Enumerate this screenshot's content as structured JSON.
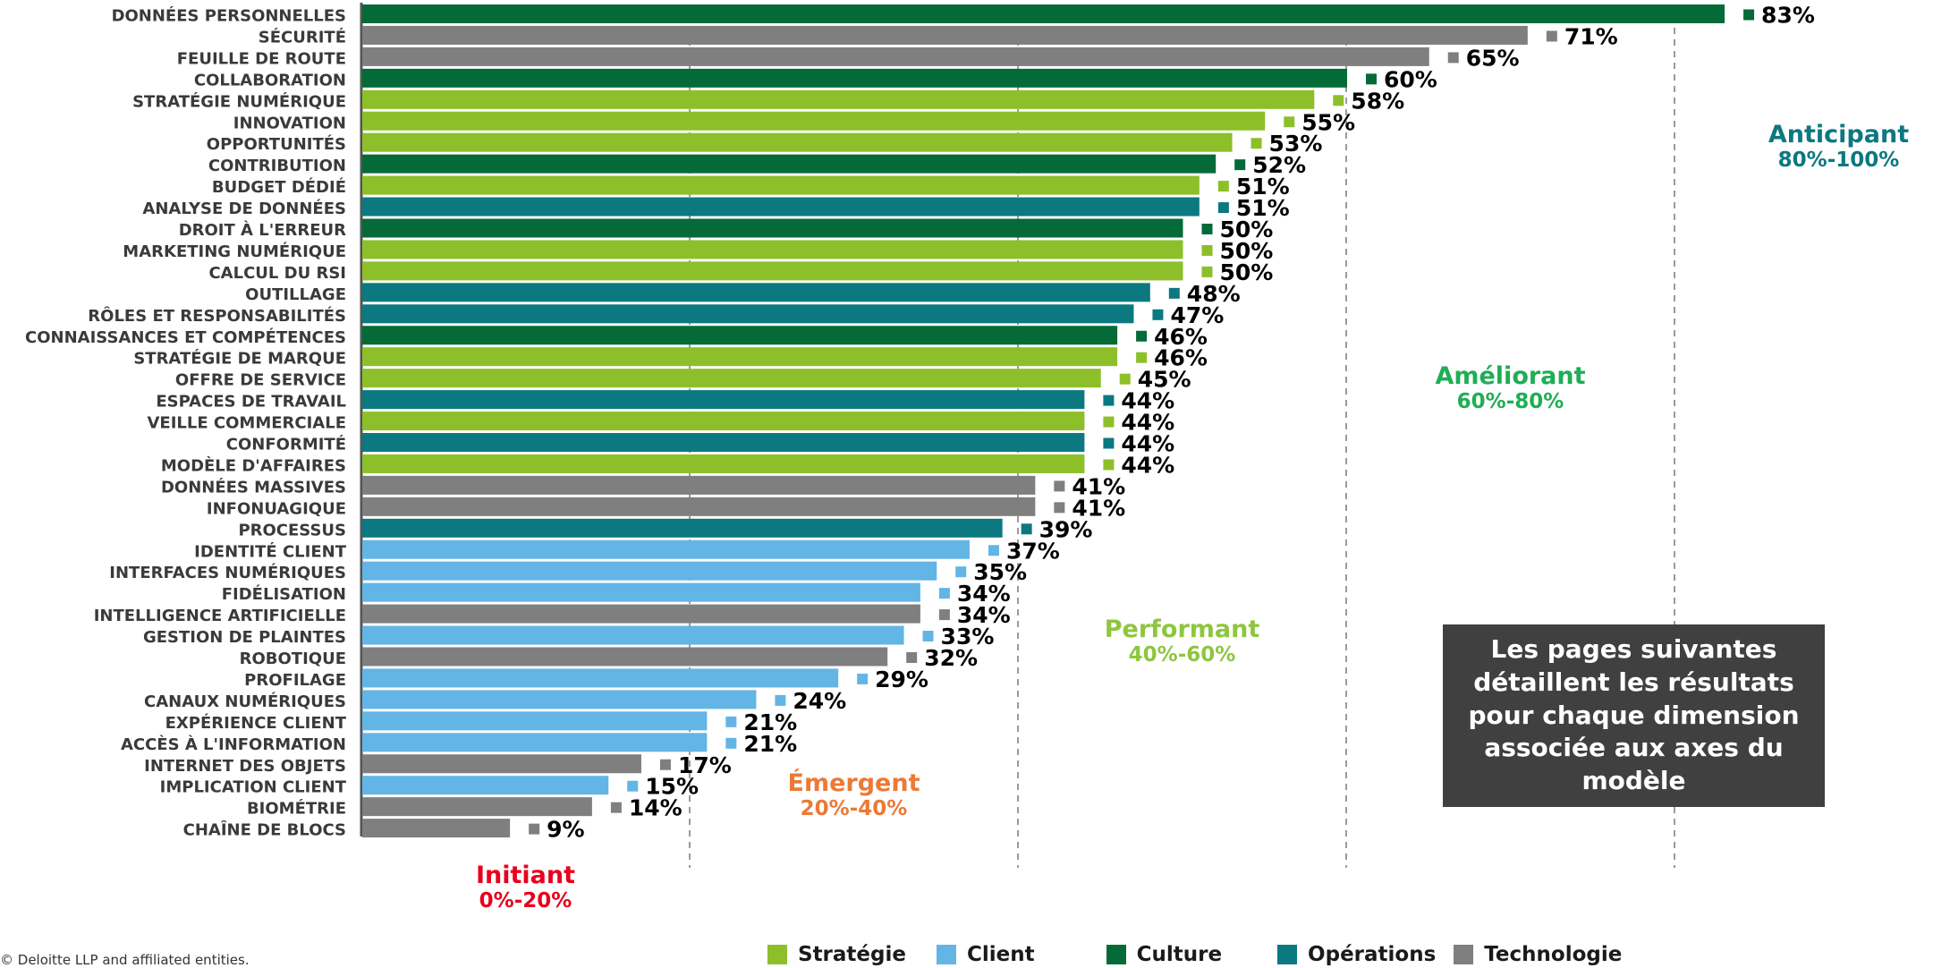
{
  "chart_data": {
    "type": "bar",
    "orientation": "horizontal",
    "xlim": [
      0,
      100
    ],
    "grid": false,
    "categories": [
      "DONNÉES PERSONNELLES",
      "SÉCURITÉ",
      "FEUILLE DE ROUTE",
      "COLLABORATION",
      "STRATÉGIE NUMÉRIQUE",
      "INNOVATION",
      "OPPORTUNITÉS",
      "CONTRIBUTION",
      "BUDGET DÉDIÉ",
      "ANALYSE DE DONNÉES",
      "DROIT À L'ERREUR",
      "MARKETING NUMÉRIQUE",
      "CALCUL DU RSI",
      "OUTILLAGE",
      "RÔLES ET RESPONSABILITÉS",
      "CONNAISSANCES ET COMPÉTENCES",
      "STRATÉGIE DE MARQUE",
      "OFFRE DE SERVICE",
      "ESPACES DE TRAVAIL",
      "VEILLE COMMERCIALE",
      "CONFORMITÉ",
      "MODÈLE D'AFFAIRES",
      "DONNÉES MASSIVES",
      "INFONUAGIQUE",
      "PROCESSUS",
      "IDENTITÉ CLIENT",
      "INTERFACES NUMÉRIQUES",
      "FIDÉLISATION",
      "INTELLIGENCE ARTIFICIELLE",
      "GESTION DE PLAINTES",
      "ROBOTIQUE",
      "PROFILAGE",
      "CANAUX NUMÉRIQUES",
      "EXPÉRIENCE CLIENT",
      "ACCÈS À L'INFORMATION",
      "INTERNET DES OBJETS",
      "IMPLICATION CLIENT",
      "BIOMÉTRIE",
      "CHAÎNE DE BLOCS"
    ],
    "values": [
      83,
      71,
      65,
      60,
      58,
      55,
      53,
      52,
      51,
      51,
      50,
      50,
      50,
      48,
      47,
      46,
      46,
      45,
      44,
      44,
      44,
      44,
      41,
      41,
      39,
      37,
      35,
      34,
      34,
      33,
      32,
      29,
      24,
      21,
      21,
      17,
      15,
      14,
      9
    ],
    "value_labels": [
      "83%",
      "71%",
      "65%",
      "60%",
      "58%",
      "55%",
      "53%",
      "52%",
      "51%",
      "51%",
      "50%",
      "50%",
      "50%",
      "48%",
      "47%",
      "46%",
      "46%",
      "45%",
      "44%",
      "44%",
      "44%",
      "44%",
      "41%",
      "41%",
      "39%",
      "37%",
      "35%",
      "34%",
      "34%",
      "33%",
      "32%",
      "29%",
      "24%",
      "21%",
      "21%",
      "17%",
      "15%",
      "14%",
      "9%"
    ],
    "groups": [
      "Culture",
      "Technologie",
      "Technologie",
      "Culture",
      "Stratégie",
      "Stratégie",
      "Stratégie",
      "Culture",
      "Stratégie",
      "Opérations",
      "Culture",
      "Stratégie",
      "Stratégie",
      "Opérations",
      "Opérations",
      "Culture",
      "Stratégie",
      "Stratégie",
      "Opérations",
      "Stratégie",
      "Opérations",
      "Stratégie",
      "Technologie",
      "Technologie",
      "Opérations",
      "Client",
      "Client",
      "Client",
      "Technologie",
      "Client",
      "Technologie",
      "Client",
      "Client",
      "Client",
      "Client",
      "Technologie",
      "Client",
      "Technologie",
      "Technologie"
    ],
    "legend": [
      {
        "name": "Stratégie",
        "color": "#8dbf2a"
      },
      {
        "name": "Client",
        "color": "#62b5e5"
      },
      {
        "name": "Culture",
        "color": "#046a38"
      },
      {
        "name": "Opérations",
        "color": "#0c7880"
      },
      {
        "name": "Technologie",
        "color": "#7f7f7f"
      }
    ],
    "legend_position": "bottom-center",
    "thresholds": [
      20,
      40,
      60,
      80
    ],
    "zones": [
      {
        "name": "Initiant",
        "range": "0%-20%",
        "color": "#e8001c",
        "center": 10
      },
      {
        "name": "Émergent",
        "range": "20%-40%",
        "color": "#ea7a36",
        "center": 30
      },
      {
        "name": "Performant",
        "range": "40%-60%",
        "color": "#8dc63f",
        "center": 50
      },
      {
        "name": "Améliorant",
        "range": "60%-80%",
        "color": "#1fae54",
        "center": 70
      },
      {
        "name": "Anticipant",
        "range": "80%-100%",
        "color": "#0c7880",
        "center": 90
      }
    ]
  },
  "callout": {
    "text": "Les pages suivantes détaillent les résultats pour chaque dimension associée aux axes du modèle"
  },
  "copyright": "© Deloitte LLP and affiliated entities."
}
